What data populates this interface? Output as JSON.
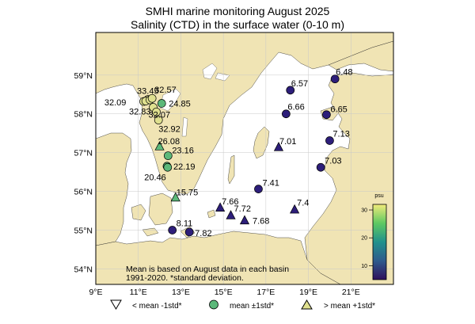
{
  "title": {
    "line1": "SMHI marine monitoring August 2025",
    "line2": "Salinity (CTD) in the surface water (0-10 m)"
  },
  "axes": {
    "x_ticks": [
      "9°E",
      "11°E",
      "13°E",
      "15°E",
      "17°E",
      "19°E",
      "21°E"
    ],
    "y_ticks": [
      "59°N",
      "58°N",
      "57°N",
      "56°N",
      "55°N",
      "54°N"
    ]
  },
  "map_extent": {
    "lon": [
      9,
      23
    ],
    "lat": [
      53.6,
      60.1
    ]
  },
  "colors": {
    "land": "#f0e4b4",
    "sea": "#ffffff",
    "low": "#2d1e7a",
    "mean": "#5cb87a",
    "high": "#dfe08f"
  },
  "stations": [
    {
      "lon": 11.25,
      "lat": 58.32,
      "value": "32.09",
      "cls": "high",
      "marker": "circle"
    },
    {
      "lon": 11.45,
      "lat": 58.37,
      "value": "33.45",
      "cls": "high",
      "marker": "circle"
    },
    {
      "lon": 11.35,
      "lat": 58.33,
      "value": "",
      "cls": "high",
      "marker": "circle"
    },
    {
      "lon": 11.55,
      "lat": 58.36,
      "value": "",
      "cls": "high",
      "marker": "circle"
    },
    {
      "lon": 11.65,
      "lat": 58.4,
      "value": "32.57",
      "cls": "high",
      "marker": "circle"
    },
    {
      "lon": 12.1,
      "lat": 58.27,
      "value": "24.85",
      "cls": "mean",
      "marker": "circle"
    },
    {
      "lon": 11.7,
      "lat": 58.17,
      "value": "32.83",
      "cls": "high",
      "marker": "circle"
    },
    {
      "lon": 11.85,
      "lat": 58.05,
      "value": "32.07",
      "cls": "high",
      "marker": "circle"
    },
    {
      "lon": 11.95,
      "lat": 57.84,
      "value": "32.92",
      "cls": "high",
      "marker": "circle"
    },
    {
      "lon": 12.0,
      "lat": 57.16,
      "value": "26.08",
      "cls": "mean",
      "marker": "triangle"
    },
    {
      "lon": 12.4,
      "lat": 56.92,
      "value": "23.16",
      "cls": "mean",
      "marker": "circle"
    },
    {
      "lon": 12.35,
      "lat": 56.65,
      "value": "22.19",
      "cls": "mean",
      "marker": "circle"
    },
    {
      "lon": 12.38,
      "lat": 56.62,
      "value": "20.46",
      "cls": "mean",
      "marker": "circle"
    },
    {
      "lon": 12.75,
      "lat": 55.84,
      "value": "15.75",
      "cls": "mean",
      "marker": "triangle"
    },
    {
      "lon": 12.6,
      "lat": 55.0,
      "value": "8.11",
      "cls": "low",
      "marker": "circle"
    },
    {
      "lon": 13.4,
      "lat": 54.95,
      "value": "7.82",
      "cls": "low",
      "marker": "circle"
    },
    {
      "lon": 14.85,
      "lat": 55.58,
      "value": "7.66",
      "cls": "low",
      "marker": "triangle"
    },
    {
      "lon": 15.35,
      "lat": 55.38,
      "value": "7.72",
      "cls": "low",
      "marker": "triangle"
    },
    {
      "lon": 16.0,
      "lat": 55.25,
      "value": "7.68",
      "cls": "low",
      "marker": "triangle"
    },
    {
      "lon": 16.65,
      "lat": 56.06,
      "value": "7.41",
      "cls": "low",
      "marker": "circle"
    },
    {
      "lon": 18.35,
      "lat": 55.53,
      "value": "7.4",
      "cls": "low",
      "marker": "triangle"
    },
    {
      "lon": 17.6,
      "lat": 57.14,
      "value": "7.01",
      "cls": "low",
      "marker": "triangle"
    },
    {
      "lon": 18.15,
      "lat": 58.61,
      "value": "6.57",
      "cls": "low",
      "marker": "circle"
    },
    {
      "lon": 20.25,
      "lat": 58.9,
      "value": "6.48",
      "cls": "low",
      "marker": "circle"
    },
    {
      "lon": 17.95,
      "lat": 58.0,
      "value": "6.66",
      "cls": "low",
      "marker": "circle"
    },
    {
      "lon": 19.85,
      "lat": 57.98,
      "value": "6.65",
      "cls": "low",
      "marker": "circle"
    },
    {
      "lon": 20.0,
      "lat": 57.31,
      "value": "7.13",
      "cls": "low",
      "marker": "circle"
    },
    {
      "lon": 19.58,
      "lat": 56.62,
      "value": "7.03",
      "cls": "low",
      "marker": "circle"
    }
  ],
  "note": {
    "line1": "Mean is based on August data in each basin",
    "line2": "1991-2020. *standard deviation."
  },
  "colorbar": {
    "unit": "psu",
    "ticks": [
      "10",
      "20",
      "30"
    ],
    "tick_values": [
      10,
      20,
      30
    ],
    "range": [
      5,
      32
    ]
  },
  "legend": [
    {
      "marker": "triangle-open",
      "label": "< mean -1std*"
    },
    {
      "marker": "circle-mean",
      "label": "mean ±1std*"
    },
    {
      "marker": "triangle-high",
      "label": "> mean +1std*"
    }
  ]
}
